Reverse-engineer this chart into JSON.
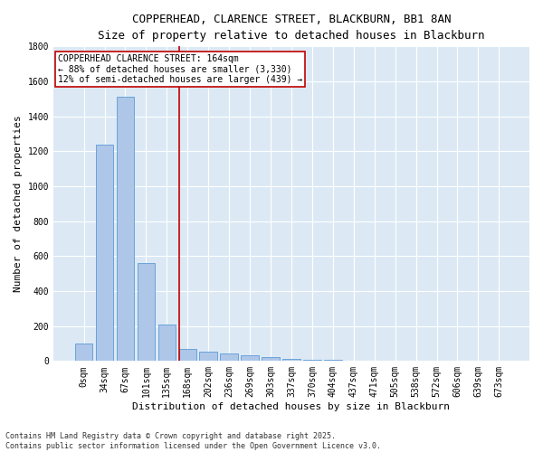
{
  "title_line1": "COPPERHEAD, CLARENCE STREET, BLACKBURN, BB1 8AN",
  "title_line2": "Size of property relative to detached houses in Blackburn",
  "xlabel": "Distribution of detached houses by size in Blackburn",
  "ylabel": "Number of detached properties",
  "categories": [
    "0sqm",
    "34sqm",
    "67sqm",
    "101sqm",
    "135sqm",
    "168sqm",
    "202sqm",
    "236sqm",
    "269sqm",
    "303sqm",
    "337sqm",
    "370sqm",
    "404sqm",
    "437sqm",
    "471sqm",
    "505sqm",
    "538sqm",
    "572sqm",
    "606sqm",
    "639sqm",
    "673sqm"
  ],
  "values": [
    100,
    1240,
    1510,
    560,
    210,
    70,
    55,
    45,
    33,
    25,
    10,
    5,
    5,
    2,
    1,
    0,
    0,
    0,
    0,
    0,
    0
  ],
  "bar_color": "#aec6e8",
  "bar_edge_color": "#5b9bd5",
  "vline_pos": 4.6,
  "vertical_line_color": "#c00000",
  "annotation_text": "COPPERHEAD CLARENCE STREET: 164sqm\n← 88% of detached houses are smaller (3,330)\n12% of semi-detached houses are larger (439) →",
  "annotation_box_color": "#c00000",
  "ylim": [
    0,
    1800
  ],
  "yticks": [
    0,
    200,
    400,
    600,
    800,
    1000,
    1200,
    1400,
    1600,
    1800
  ],
  "background_color": "#dce9f5",
  "grid_color": "#ffffff",
  "footnote": "Contains HM Land Registry data © Crown copyright and database right 2025.\nContains public sector information licensed under the Open Government Licence v3.0.",
  "title_fontsize": 9,
  "title2_fontsize": 8.5,
  "label_fontsize": 8,
  "tick_fontsize": 7,
  "annot_fontsize": 7,
  "footnote_fontsize": 6
}
